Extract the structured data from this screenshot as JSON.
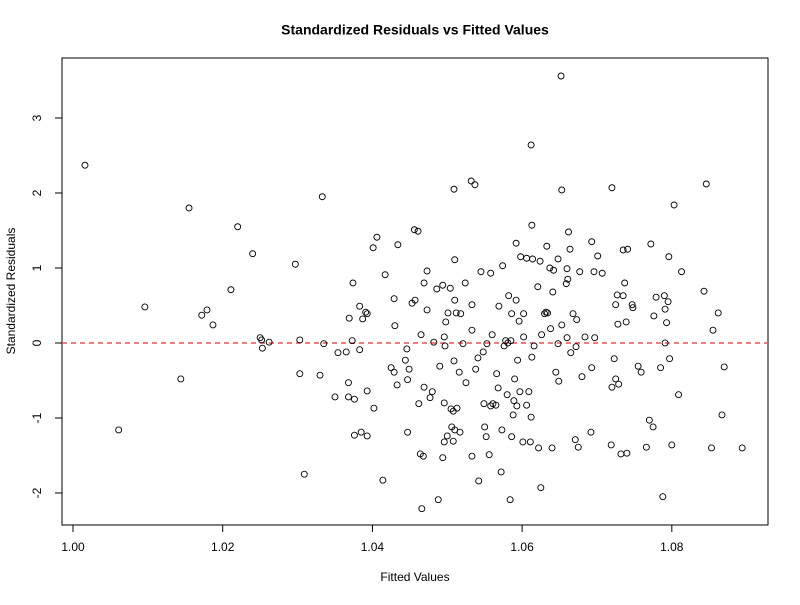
{
  "chart_data": {
    "type": "scatter",
    "title": "Standardized Residuals vs Fitted Values",
    "xlabel": "Fitted Values",
    "ylabel": "Standardized Residuals",
    "xlim": [
      0.99853,
      1.09285
    ],
    "ylim": [
      -2.427,
      3.8
    ],
    "xticks": [
      {
        "value": 1.0,
        "label": "1.00"
      },
      {
        "value": 1.02,
        "label": "1.02"
      },
      {
        "value": 1.04,
        "label": "1.04"
      },
      {
        "value": 1.06,
        "label": "1.06"
      },
      {
        "value": 1.08,
        "label": "1.08"
      }
    ],
    "yticks": [
      -2,
      -1,
      0,
      1,
      2,
      3
    ],
    "color": "#000000",
    "reference_line": {
      "y": 0,
      "color": "#f05050"
    },
    "x": [
      1.0016,
      1.0061,
      1.0096,
      1.0144,
      1.0155,
      1.0172,
      1.0179,
      1.0187,
      1.0211,
      1.022,
      1.024,
      1.025,
      1.0252,
      1.0253,
      1.0262,
      1.0297,
      1.0303,
      1.0303,
      1.0309,
      1.033,
      1.0333,
      1.0335,
      1.035,
      1.0354,
      1.0365,
      1.0368,
      1.0368,
      1.0369,
      1.0373,
      1.0374,
      1.0376,
      1.0376,
      1.0383,
      1.0383,
      1.0385,
      1.0387,
      1.0391,
      1.0393,
      1.0393,
      1.0393,
      1.0401,
      1.0402,
      1.0406,
      1.0414,
      1.0417,
      1.0425,
      1.0429,
      1.0429,
      1.043,
      1.0434,
      1.0433,
      1.0444,
      1.0446,
      1.0447,
      1.0447,
      1.0449,
      1.0453,
      1.0456,
      1.0457,
      1.0461,
      1.0462,
      1.0464,
      1.0465,
      1.0466,
      1.0468,
      1.0469,
      1.0469,
      1.0473,
      1.0473,
      1.0477,
      1.048,
      1.0482,
      1.0486,
      1.0488,
      1.049,
      1.0494,
      1.0494,
      1.0496,
      1.0496,
      1.0496,
      1.0497,
      1.0498,
      1.05,
      1.0501,
      1.0504,
      1.0505,
      1.0506,
      1.0508,
      1.0508,
      1.0509,
      1.051,
      1.0509,
      1.051,
      1.051,
      1.0512,
      1.0513,
      1.0516,
      1.0517,
      1.0518,
      1.0521,
      1.0524,
      1.0525,
      1.0532,
      1.0533,
      1.0533,
      1.0533,
      1.0537,
      1.0538,
      1.0541,
      1.0542,
      1.0545,
      1.0548,
      1.0549,
      1.055,
      1.0552,
      1.0553,
      1.0556,
      1.0558,
      1.0558,
      1.056,
      1.0561,
      1.0565,
      1.0566,
      1.0568,
      1.0569,
      1.0572,
      1.0573,
      1.0574,
      1.0576,
      1.0578,
      1.058,
      1.0581,
      1.0582,
      1.0584,
      1.0585,
      1.0586,
      1.0586,
      1.0588,
      1.0589,
      1.059,
      1.0592,
      1.0592,
      1.0593,
      1.0594,
      1.0596,
      1.0597,
      1.0598,
      1.0601,
      1.0602,
      1.0602,
      1.0606,
      1.0606,
      1.0609,
      1.0611,
      1.0612,
      1.0612,
      1.0613,
      1.0613,
      1.0614,
      1.0616,
      1.0621,
      1.0622,
      1.0624,
      1.0625,
      1.0626,
      1.063,
      1.0632,
      1.0633,
      1.0634,
      1.0637,
      1.0638,
      1.064,
      1.0641,
      1.0642,
      1.0645,
      1.0648,
      1.0648,
      1.0649,
      1.0652,
      1.0653,
      1.0653,
      1.0659,
      1.066,
      1.066,
      1.0661,
      1.0662,
      1.0664,
      1.0665,
      1.0668,
      1.0671,
      1.0672,
      1.0673,
      1.0675,
      1.0677,
      1.068,
      1.0684,
      1.0692,
      1.0693,
      1.0693,
      1.0696,
      1.0697,
      1.0701,
      1.0707,
      1.0719,
      1.072,
      1.072,
      1.0723,
      1.0725,
      1.0725,
      1.0727,
      1.0728,
      1.0729,
      1.0732,
      1.0735,
      1.0735,
      1.0737,
      1.0739,
      1.074,
      1.0741,
      1.0747,
      1.0748,
      1.0755,
      1.0759,
      1.0766,
      1.077,
      1.0772,
      1.0775,
      1.0776,
      1.0779,
      1.0785,
      1.0788,
      1.079,
      1.0791,
      1.0791,
      1.0793,
      1.0795,
      1.0796,
      1.0797,
      1.08,
      1.0803,
      1.0809,
      1.0813,
      1.0843,
      1.0846,
      1.0853,
      1.0855,
      1.0862,
      1.0867,
      1.087,
      1.0894
    ],
    "y": [
      2.37,
      -1.16,
      0.48,
      -0.48,
      1.8,
      0.37,
      0.44,
      0.24,
      0.71,
      1.55,
      1.19,
      0.07,
      0.04,
      -0.07,
      0.01,
      1.05,
      0.04,
      -0.41,
      -1.75,
      -0.43,
      1.95,
      -0.01,
      -0.72,
      -0.13,
      -0.12,
      -0.53,
      -0.72,
      0.33,
      0.03,
      0.8,
      -1.23,
      -0.75,
      -0.09,
      0.49,
      -1.19,
      0.32,
      0.41,
      -0.64,
      -1.24,
      0.39,
      1.27,
      -0.87,
      1.41,
      -1.83,
      0.91,
      -0.33,
      -0.39,
      0.59,
      0.23,
      1.31,
      -0.56,
      -0.23,
      -0.08,
      -0.49,
      -1.19,
      -0.35,
      0.53,
      1.51,
      0.57,
      1.49,
      -0.81,
      -1.48,
      0.11,
      -2.21,
      -1.51,
      0.8,
      -0.59,
      0.96,
      0.44,
      -0.73,
      -0.65,
      0.01,
      0.72,
      -2.09,
      -0.31,
      -1.53,
      0.77,
      -1.32,
      -0.8,
      0.08,
      -0.04,
      0.28,
      -1.24,
      0.4,
      0.73,
      -0.88,
      -1.12,
      -0.91,
      -1.31,
      2.05,
      0.57,
      -0.24,
      -1.16,
      1.11,
      0.4,
      -0.87,
      -0.39,
      -1.19,
      0.39,
      -0.01,
      0.8,
      -0.53,
      2.16,
      0.17,
      0.51,
      -1.51,
      2.11,
      -0.35,
      -0.2,
      -1.84,
      0.95,
      -0.12,
      -0.81,
      -1.12,
      -1.25,
      -0.01,
      -1.49,
      -0.84,
      0.93,
      0.11,
      -0.81,
      -0.83,
      -0.41,
      -0.6,
      0.49,
      -1.72,
      -1.16,
      1.03,
      -0.04,
      0.03,
      -0.69,
      0.0,
      0.63,
      -2.09,
      0.03,
      -1.25,
      0.39,
      -0.96,
      -0.77,
      -0.48,
      1.33,
      0.57,
      -0.84,
      -0.23,
      0.29,
      -0.65,
      1.15,
      -1.32,
      0.08,
      0.39,
      1.13,
      -0.83,
      -0.65,
      -1.32,
      2.64,
      -0.99,
      1.57,
      -0.19,
      1.12,
      -0.04,
      0.75,
      -1.4,
      1.09,
      -1.93,
      0.11,
      0.39,
      0.41,
      1.29,
      0.4,
      1.0,
      0.19,
      -1.4,
      0.68,
      0.97,
      -0.39,
      1.12,
      -0.01,
      -0.51,
      3.56,
      2.04,
      0.24,
      0.79,
      0.99,
      0.07,
      0.85,
      1.48,
      1.25,
      -0.13,
      0.39,
      -1.29,
      -0.05,
      0.31,
      -1.39,
      0.95,
      -0.45,
      0.08,
      -1.19,
      -0.33,
      1.35,
      0.95,
      0.07,
      1.16,
      0.93,
      -1.36,
      -0.59,
      2.07,
      -0.21,
      -0.48,
      0.51,
      0.64,
      0.25,
      -0.55,
      -1.48,
      0.63,
      1.24,
      0.8,
      0.28,
      -1.47,
      1.25,
      0.51,
      0.47,
      -0.31,
      -0.39,
      -1.39,
      -1.03,
      1.32,
      -1.12,
      0.36,
      0.61,
      -0.33,
      -2.05,
      0.63,
      0.0,
      0.45,
      0.27,
      0.55,
      1.15,
      -0.21,
      -1.36,
      1.84,
      -0.69,
      0.95,
      0.69,
      2.12,
      -1.4,
      0.17,
      0.4,
      -0.96,
      -0.32,
      -1.4
    ]
  }
}
